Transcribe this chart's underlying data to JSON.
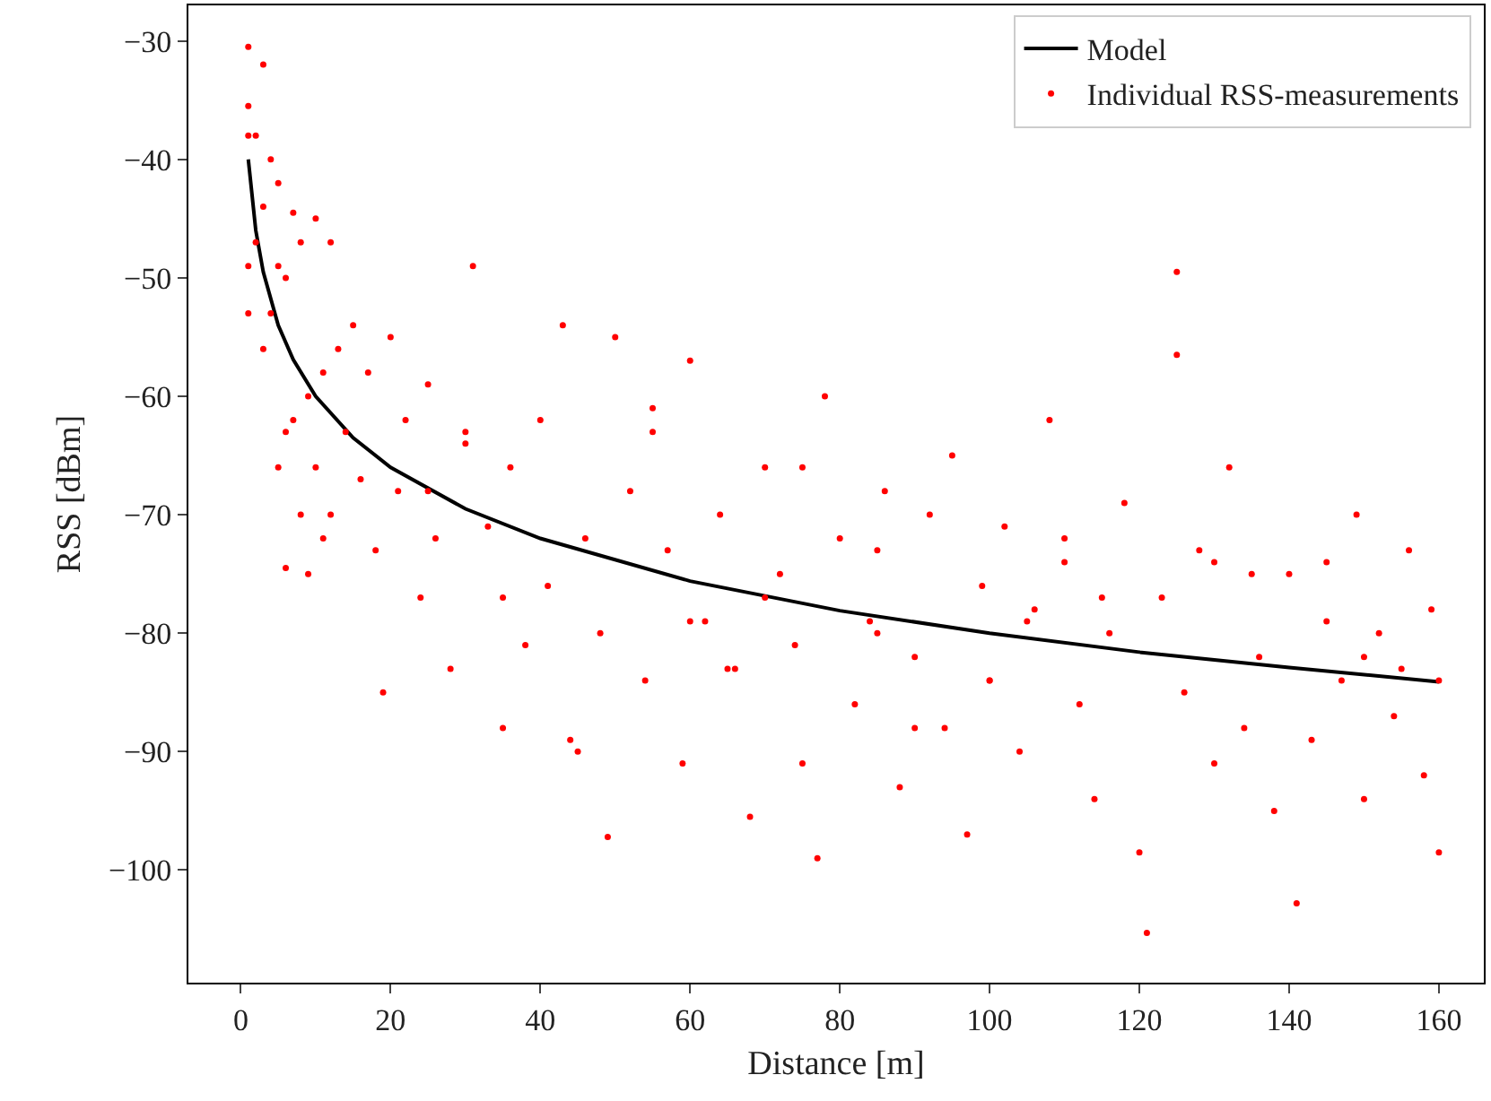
{
  "chart_data": {
    "type": "scatter",
    "xlabel": "Distance [m]",
    "ylabel": "RSS [dBm]",
    "xlim": [
      -7,
      166
    ],
    "ylim": [
      -109.5,
      -27
    ],
    "xticks": [
      0,
      20,
      40,
      60,
      80,
      100,
      120,
      140,
      160
    ],
    "yticks": [
      -30,
      -40,
      -50,
      -60,
      -70,
      -80,
      -90,
      -100
    ],
    "grid": false,
    "legend": "top right",
    "series": [
      {
        "name": "Model",
        "type": "line",
        "color": "#000000",
        "line_style": "solid",
        "marker": "none",
        "x": [
          1,
          2,
          3,
          5,
          7,
          10,
          15,
          20,
          30,
          40,
          60,
          80,
          100,
          120,
          140,
          160
        ],
        "values": [
          -40,
          -46.0,
          -49.5,
          -54.0,
          -56.9,
          -60,
          -63.5,
          -66.0,
          -69.5,
          -72.0,
          -75.6,
          -78.1,
          -80,
          -81.6,
          -82.9,
          -84.1
        ]
      },
      {
        "name": "Individual RSS-measurements",
        "marker": "circle",
        "color": "#ff0000",
        "x": [
          1,
          1,
          1,
          1,
          1,
          2,
          2,
          3,
          3,
          3,
          4,
          4,
          5,
          5,
          5,
          6,
          6,
          6,
          7,
          7,
          8,
          8,
          9,
          9,
          10,
          10,
          11,
          11,
          12,
          12,
          13,
          14,
          15,
          16,
          17,
          18,
          19,
          20,
          21,
          22,
          24,
          25,
          26,
          28,
          30,
          31,
          33,
          35,
          36,
          38,
          40,
          41,
          43,
          44,
          46,
          48,
          49,
          50,
          52,
          54,
          55,
          57,
          59,
          60,
          62,
          64,
          66,
          68,
          70,
          72,
          74,
          75,
          77,
          78,
          80,
          82,
          84,
          86,
          88,
          90,
          92,
          94,
          95,
          97,
          99,
          100,
          102,
          104,
          106,
          108,
          110,
          112,
          114,
          116,
          118,
          120,
          121,
          123,
          125,
          126,
          128,
          130,
          132,
          134,
          136,
          138,
          140,
          141,
          143,
          145,
          147,
          149,
          150,
          152,
          154,
          156,
          158,
          159,
          160,
          160,
          45,
          60,
          85,
          100,
          115,
          130,
          150,
          70,
          90,
          110,
          135,
          155,
          25,
          35,
          55,
          65,
          75,
          105,
          125,
          145,
          30,
          85
        ],
        "values": [
          -30.5,
          -35.5,
          -38,
          -49,
          -53,
          -38,
          -47,
          -32,
          -44,
          -56,
          -40,
          -53,
          -42,
          -49,
          -66,
          -50,
          -63,
          -74.5,
          -44.5,
          -62,
          -47,
          -70,
          -60,
          -75,
          -45,
          -66,
          -58,
          -72,
          -47,
          -70,
          -56,
          -63,
          -54,
          -67,
          -58,
          -73,
          -85,
          -55,
          -68,
          -62,
          -77,
          -59,
          -72,
          -83,
          -64,
          -49,
          -71,
          -88,
          -66,
          -81,
          -62,
          -76,
          -54,
          -89,
          -72,
          -80,
          -97.2,
          -55,
          -68,
          -84,
          -61,
          -73,
          -91,
          -57,
          -79,
          -70,
          -83,
          -95.5,
          -66,
          -75,
          -81,
          -91,
          -99,
          -60,
          -72,
          -86,
          -79,
          -68,
          -93,
          -82,
          -70,
          -88,
          -65,
          -97,
          -76,
          -84,
          -71,
          -90,
          -78,
          -62,
          -74,
          -86,
          -94,
          -80,
          -69,
          -98.5,
          -105.3,
          -77,
          -49.5,
          -85,
          -73,
          -91,
          -66,
          -88,
          -82,
          -95,
          -75,
          -102.8,
          -89,
          -79,
          -84,
          -70,
          -94,
          -80,
          -87,
          -73,
          -92,
          -78,
          -84,
          -98.5,
          -90,
          -79,
          -73,
          -84,
          -77,
          -74,
          -82,
          -77,
          -88,
          -72,
          -75,
          -83,
          -68,
          -77,
          -63,
          -83,
          -66,
          -79,
          -56.5,
          -74,
          -63,
          -80
        ]
      }
    ]
  }
}
